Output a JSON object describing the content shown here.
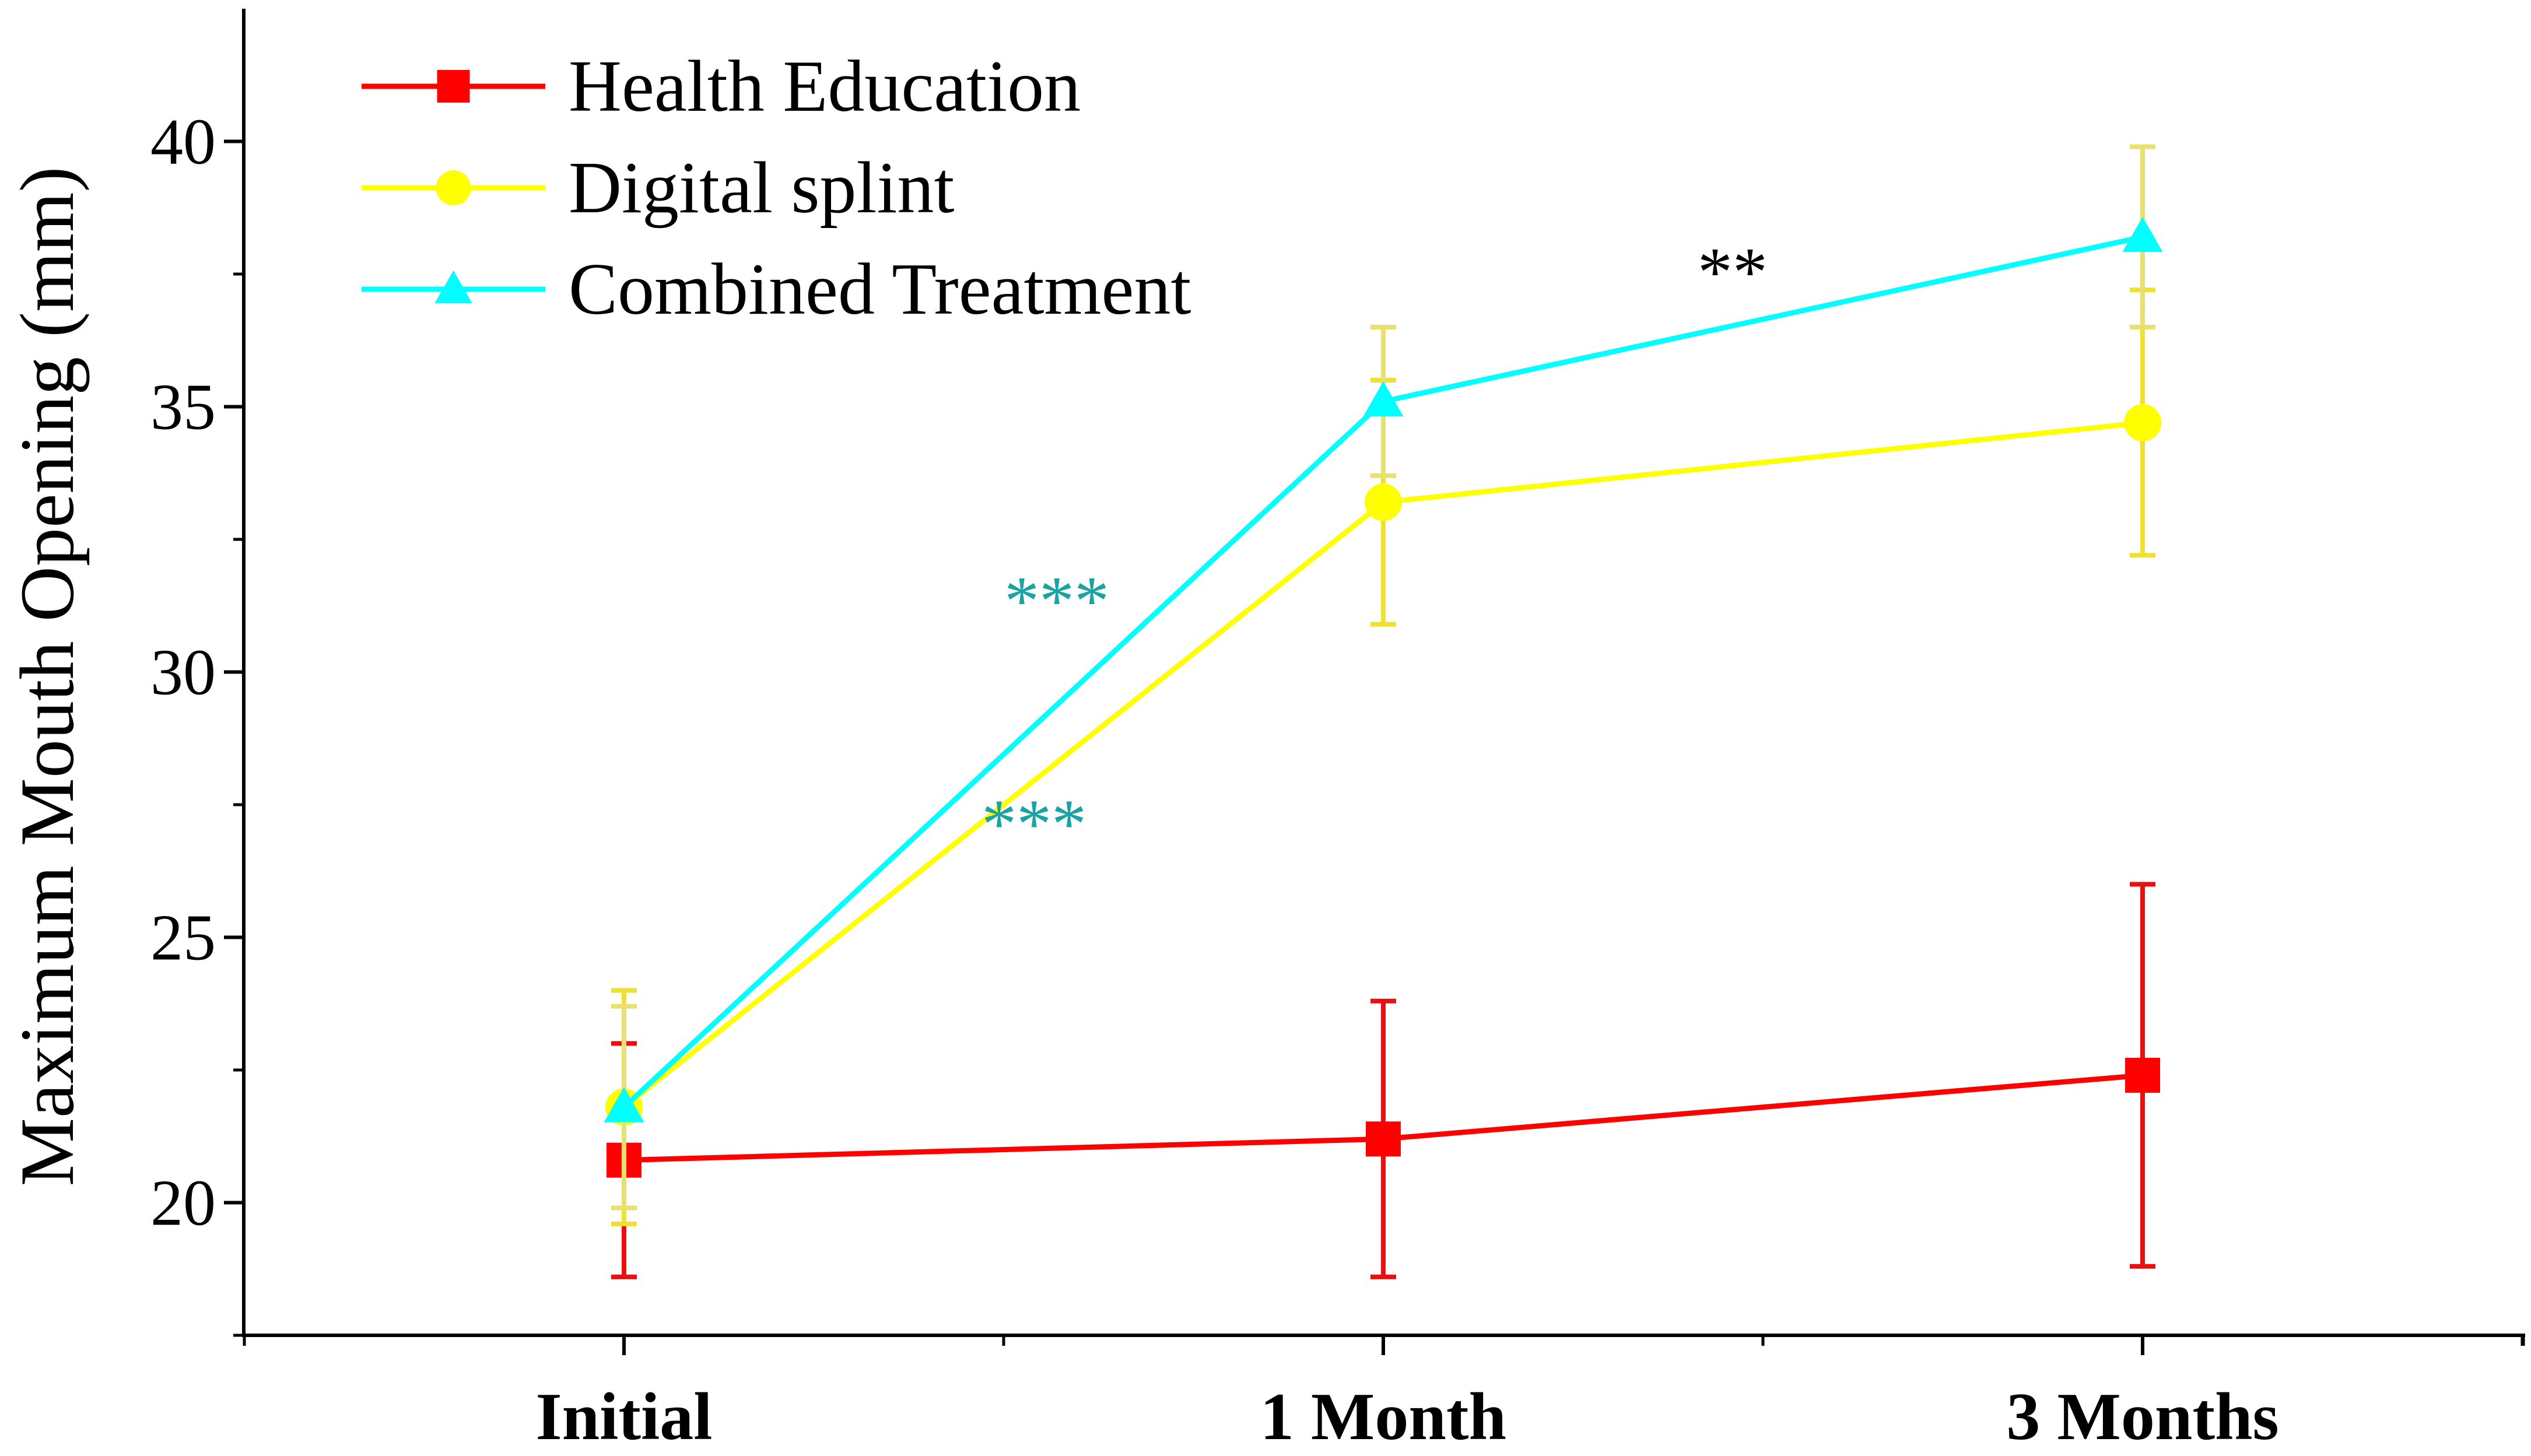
{
  "chart_data": {
    "type": "line",
    "title": "",
    "xlabel": "",
    "ylabel": "Maximum Mouth Opening (mm)",
    "categories": [
      "Initial",
      "1 Month",
      "3 Months"
    ],
    "ylim": [
      17.5,
      42.5
    ],
    "yticks": [
      20,
      25,
      30,
      35,
      40
    ],
    "yticklabels": [
      "20",
      "25",
      "30",
      "35",
      "40"
    ],
    "grid": false,
    "legend": "top-left",
    "series": [
      {
        "name": "Health Education",
        "color": "#ff0000",
        "marker": "square",
        "values": [
          20.8,
          21.2,
          22.4
        ],
        "errors": [
          2.2,
          2.6,
          3.6
        ]
      },
      {
        "name": "Digital splint",
        "color": "#ffff00",
        "marker": "circle",
        "values": [
          21.8,
          33.2,
          34.7
        ],
        "errors": [
          2.2,
          2.3,
          2.5
        ]
      },
      {
        "name": "Combined Treatment",
        "color": "#00ffff",
        "marker": "triangle",
        "values": [
          21.8,
          35.1,
          38.2
        ],
        "errors": [
          1.9,
          1.4,
          1.7
        ]
      }
    ],
    "annotations": [
      {
        "text": "***",
        "color": "#1aa3a3",
        "x": 0.57,
        "y": 30.9
      },
      {
        "text": "***",
        "color": "#1aa3a3",
        "x": 0.54,
        "y": 26.7
      },
      {
        "text": "**",
        "color": "#000000",
        "x": 1.46,
        "y": 37.1
      }
    ]
  }
}
